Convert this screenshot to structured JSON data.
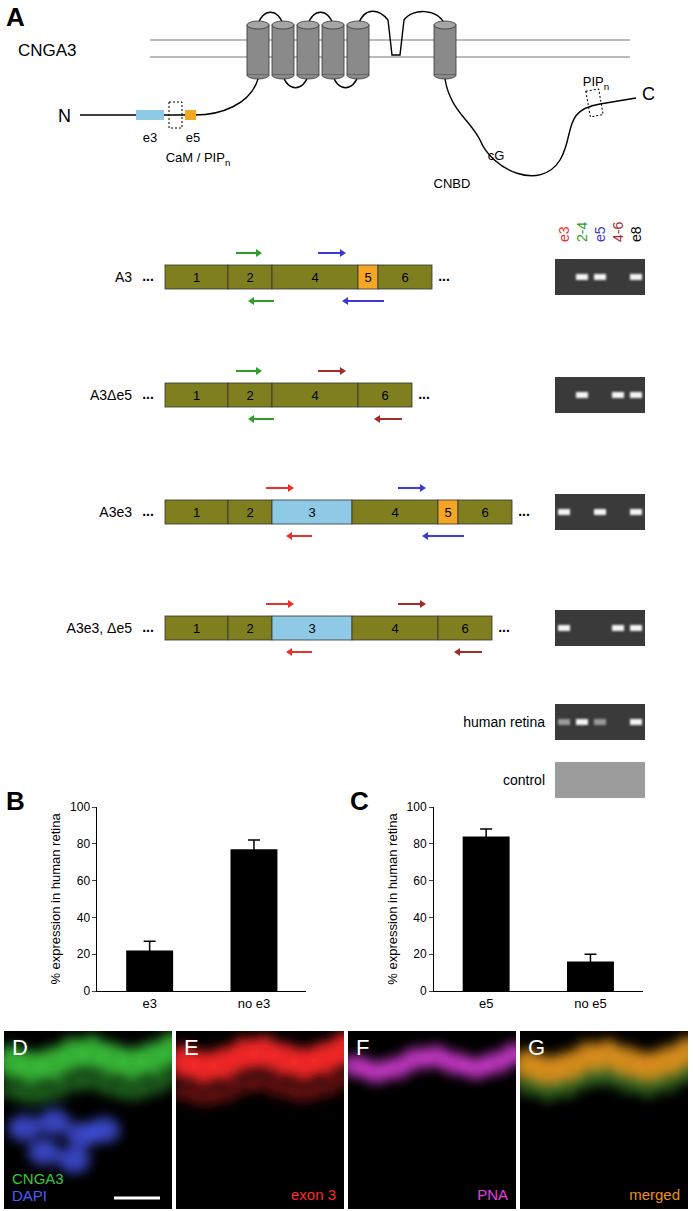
{
  "panel_labels": [
    "A",
    "B",
    "C"
  ],
  "diagram": {
    "protein": "CNGA3",
    "n_terminus": "N",
    "c_terminus": "C",
    "n_exons": [
      {
        "text": "e3",
        "color": "#8ecae6"
      },
      {
        "text": "e5",
        "color": "#f5a623"
      }
    ],
    "n_site": {
      "text": "CaM / PIP",
      "sub": "n"
    },
    "c_site": {
      "text": "PIP",
      "sub": "n"
    },
    "cg": "cG",
    "cnbd": "CNBD"
  },
  "constructs": {
    "exon_color": "#7f7f1f",
    "special_exons": {
      "3": "#8ecae6",
      "5": "#f5a623"
    },
    "continuation": "...",
    "rows": [
      {
        "name": "A3",
        "exons": [
          1,
          2,
          4,
          5,
          6
        ],
        "primers": [
          "2-4",
          "e5"
        ],
        "bands": [
          false,
          true,
          true,
          false,
          true
        ]
      },
      {
        "name": "A3Δe5",
        "exons": [
          1,
          2,
          4,
          6
        ],
        "primers": [
          "2-4",
          "4-6"
        ],
        "bands": [
          false,
          true,
          false,
          true,
          true
        ]
      },
      {
        "name": "A3e3",
        "exons": [
          1,
          2,
          3,
          4,
          5,
          6
        ],
        "primers": [
          "e3",
          "e5"
        ],
        "bands": [
          true,
          false,
          true,
          false,
          true
        ]
      },
      {
        "name": "A3e3, Δe5",
        "exons": [
          1,
          2,
          3,
          4,
          6
        ],
        "primers": [
          "e3",
          "4-6"
        ],
        "bands": [
          true,
          false,
          false,
          true,
          true
        ]
      }
    ]
  },
  "gel": {
    "lanes": [
      {
        "label": "e3",
        "color": "#e8312a"
      },
      {
        "label": "2-4",
        "color": "#2ca02c"
      },
      {
        "label": "e5",
        "color": "#3a3ad8"
      },
      {
        "label": "4-6",
        "color": "#a52a2a"
      },
      {
        "label": "e8",
        "color": "#000000"
      }
    ],
    "samples": [
      {
        "name": "human retina",
        "bands": [
          true,
          true,
          true,
          false,
          true
        ]
      },
      {
        "name": "control",
        "bands": [
          false,
          false,
          false,
          false,
          false
        ]
      }
    ]
  },
  "chart_data": [
    {
      "type": "bar",
      "categories": [
        "e3",
        "no e3"
      ],
      "values": [
        22,
        77
      ],
      "errors": [
        5,
        5
      ],
      "ylabel": "% expression in human retina",
      "ylim": [
        0,
        100
      ],
      "yticks": [
        0,
        20,
        40,
        60,
        80,
        100
      ],
      "color": "#000000",
      "grid": false
    },
    {
      "type": "bar",
      "categories": [
        "e5",
        "no e5"
      ],
      "values": [
        84,
        16
      ],
      "errors": [
        4,
        4
      ],
      "ylabel": "% expression in human retina",
      "ylim": [
        0,
        100
      ],
      "yticks": [
        0,
        20,
        40,
        60,
        80,
        100
      ],
      "color": "#000000",
      "grid": false
    }
  ],
  "images": [
    {
      "label": "D",
      "texts": [
        {
          "text": "CNGA3",
          "color": "#3cc83c"
        },
        {
          "text": "DAPI",
          "color": "#4a5cff"
        }
      ]
    },
    {
      "label": "E",
      "texts": [
        {
          "text": "exon 3",
          "color": "#ff2a2a"
        }
      ]
    },
    {
      "label": "F",
      "texts": [
        {
          "text": "PNA",
          "color": "#e040e0"
        }
      ]
    },
    {
      "label": "G",
      "texts": [
        {
          "text": "merged",
          "color": "#e8901a"
        }
      ]
    }
  ]
}
